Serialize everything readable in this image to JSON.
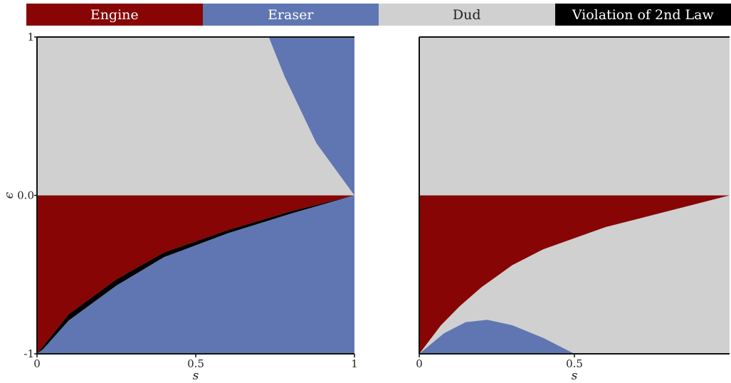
{
  "legend": [
    {
      "label": "Engine",
      "color": "#870505",
      "text_color": "#ffffff"
    },
    {
      "label": "Eraser",
      "color": "#6076b2",
      "text_color": "#ffffff"
    },
    {
      "label": "Dud",
      "color": "#d0d0d0",
      "text_color": "#222222"
    },
    {
      "label": "Violation of 2nd Law",
      "color": "#000000",
      "text_color": "#ffffff"
    }
  ],
  "chart_data": [
    {
      "type": "heatmap",
      "xlabel": "s",
      "ylabel": "ϵ",
      "xlim": [
        0,
        1
      ],
      "ylim": [
        -1,
        1
      ],
      "x_ticks": [
        "0",
        "0.5",
        "1"
      ],
      "y_ticks": [
        "-1",
        "0.0",
        "1"
      ],
      "regions": [
        {
          "name": "Dud",
          "points": [
            [
              0,
              0
            ],
            [
              0,
              1
            ],
            [
              0.73,
              1
            ],
            [
              1,
              0
            ]
          ]
        },
        {
          "name": "Eraser",
          "points": [
            [
              0.73,
              1
            ],
            [
              1,
              1
            ],
            [
              1,
              0
            ],
            [
              0.88,
              0.33
            ],
            [
              0.78,
              0.75
            ]
          ]
        },
        {
          "name": "Engine",
          "points": [
            [
              0,
              0
            ],
            [
              1,
              0
            ],
            [
              0.8,
              -0.1
            ],
            [
              0.6,
              -0.22
            ],
            [
              0.4,
              -0.36
            ],
            [
              0.25,
              -0.53
            ],
            [
              0.1,
              -0.75
            ],
            [
              0,
              -1
            ]
          ]
        },
        {
          "name": "Violation of 2nd Law",
          "points": [
            [
              1,
              0
            ],
            [
              0.8,
              -0.1
            ],
            [
              0.6,
              -0.22
            ],
            [
              0.4,
              -0.36
            ],
            [
              0.25,
              -0.53
            ],
            [
              0.1,
              -0.75
            ],
            [
              0,
              -1
            ],
            [
              0.02,
              -0.97
            ],
            [
              0.1,
              -0.79
            ],
            [
              0.25,
              -0.57
            ],
            [
              0.4,
              -0.39
            ],
            [
              0.6,
              -0.24
            ],
            [
              0.8,
              -0.115
            ]
          ]
        },
        {
          "name": "Eraser",
          "points": [
            [
              0,
              -1
            ],
            [
              0.02,
              -0.97
            ],
            [
              0.1,
              -0.79
            ],
            [
              0.25,
              -0.57
            ],
            [
              0.4,
              -0.39
            ],
            [
              0.6,
              -0.24
            ],
            [
              0.8,
              -0.115
            ],
            [
              1,
              0
            ],
            [
              1,
              -1
            ]
          ]
        }
      ]
    },
    {
      "type": "heatmap",
      "xlabel": "s",
      "ylabel": "",
      "xlim": [
        0,
        1
      ],
      "ylim": [
        -1,
        1
      ],
      "x_ticks": [
        "0",
        "0.5"
      ],
      "y_ticks": [],
      "regions": [
        {
          "name": "Dud",
          "points": [
            [
              0,
              -1
            ],
            [
              0,
              1
            ],
            [
              1,
              1
            ],
            [
              1,
              -1
            ]
          ]
        },
        {
          "name": "Engine",
          "points": [
            [
              0,
              0
            ],
            [
              1,
              0
            ],
            [
              0.8,
              -0.1
            ],
            [
              0.6,
              -0.2
            ],
            [
              0.4,
              -0.34
            ],
            [
              0.3,
              -0.44
            ],
            [
              0.2,
              -0.58
            ],
            [
              0.13,
              -0.7
            ],
            [
              0.07,
              -0.82
            ],
            [
              0,
              -1
            ]
          ]
        },
        {
          "name": "Eraser",
          "points": [
            [
              0,
              -1
            ],
            [
              0.08,
              -0.87
            ],
            [
              0.15,
              -0.8
            ],
            [
              0.22,
              -0.785
            ],
            [
              0.3,
              -0.82
            ],
            [
              0.4,
              -0.9
            ],
            [
              0.5,
              -1
            ]
          ]
        }
      ]
    }
  ]
}
